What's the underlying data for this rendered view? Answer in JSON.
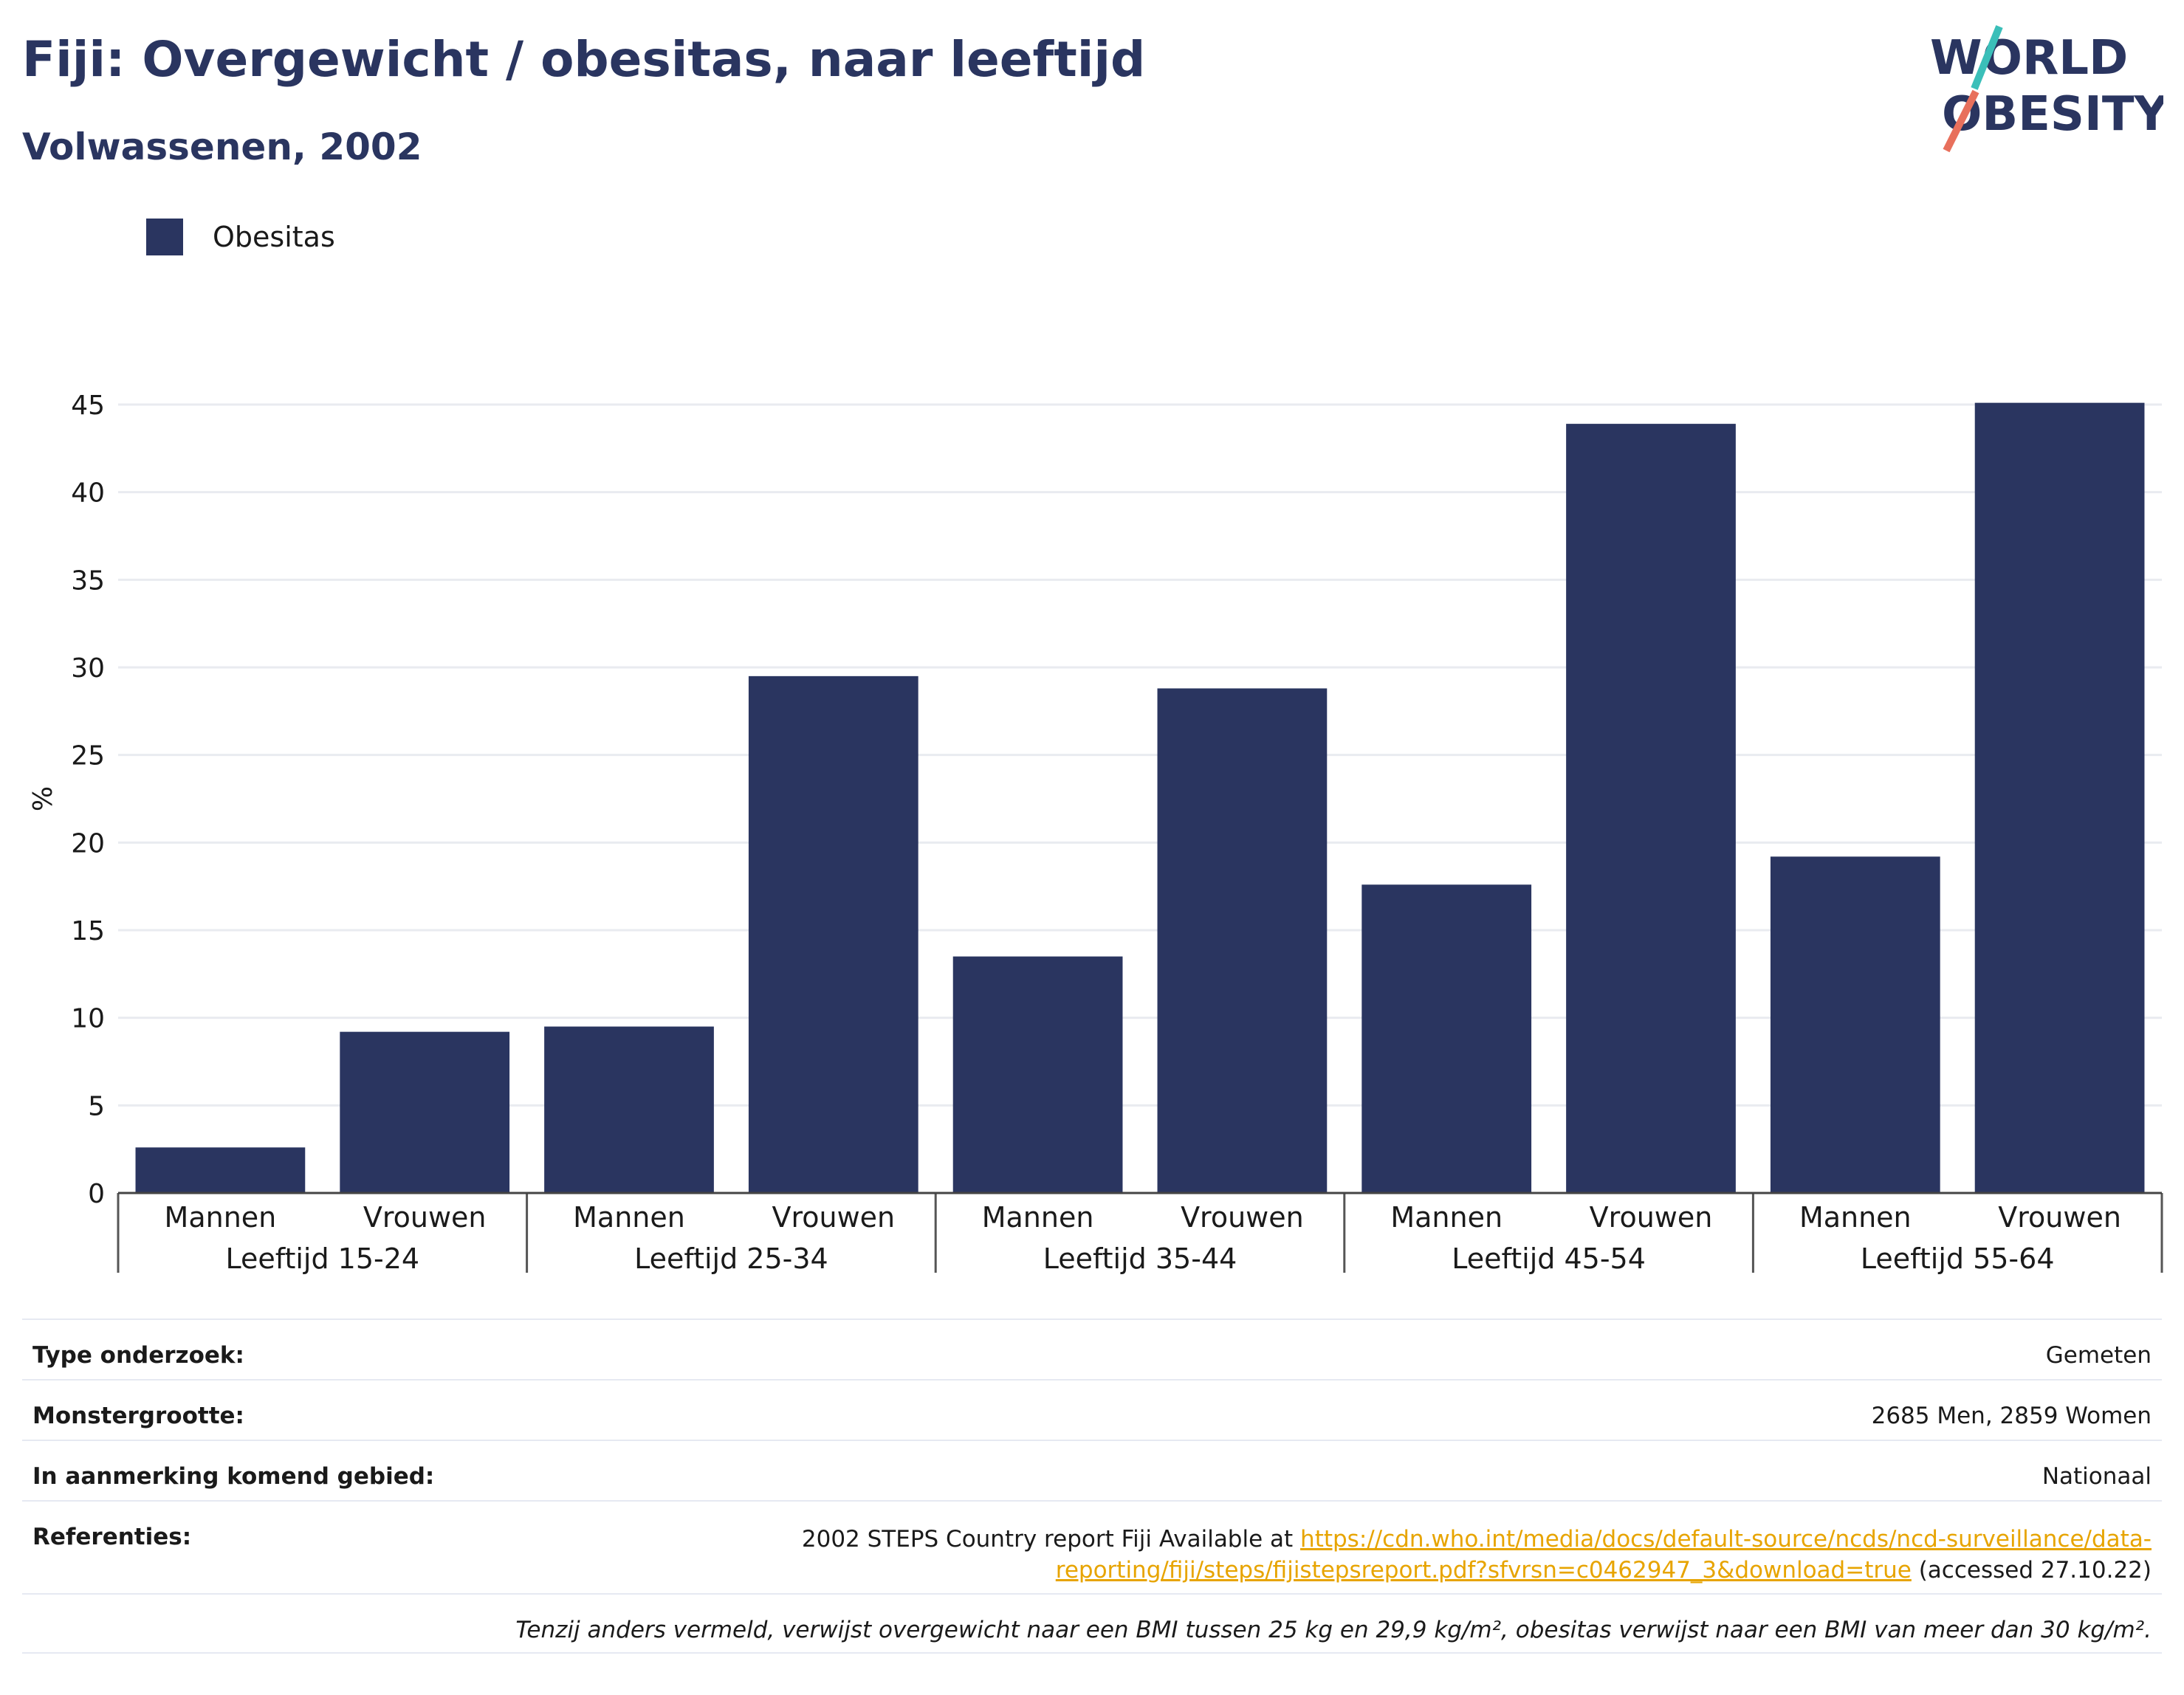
{
  "header": {
    "title": "Fiji: Overgewicht / obesitas, naar leeftijd",
    "subtitle": "Volwassenen, 2002"
  },
  "logo": {
    "line1": "WORLD",
    "line2": "OBESITY",
    "accent_teal": "#3bbfb9",
    "accent_coral": "#e8705c"
  },
  "colors": {
    "bar": "#2a3560",
    "grid": "#e9ebf0",
    "text": "#1a1a1a"
  },
  "chart_data": {
    "type": "bar",
    "ylabel": "%",
    "ylim": [
      0,
      45
    ],
    "yticks": [
      0,
      5,
      10,
      15,
      20,
      25,
      30,
      35,
      40,
      45
    ],
    "grid": true,
    "legend": {
      "placement": "top-left",
      "entries": [
        "Obesitas"
      ]
    },
    "groups": [
      "Leeftijd 15-24",
      "Leeftijd 25-34",
      "Leeftijd 35-44",
      "Leeftijd 45-54",
      "Leeftijd 55-64"
    ],
    "subcategories": [
      "Mannen",
      "Vrouwen"
    ],
    "series": [
      {
        "name": "Obesitas",
        "values": [
          [
            2.6,
            9.2
          ],
          [
            9.5,
            29.5
          ],
          [
            13.5,
            28.8
          ],
          [
            17.6,
            43.9
          ],
          [
            19.2,
            45.1
          ]
        ]
      }
    ]
  },
  "info": {
    "rows": [
      {
        "label": "Type onderzoek:",
        "value": "Gemeten"
      },
      {
        "label": "Monstergrootte:",
        "value": "2685 Men, 2859 Women"
      },
      {
        "label": "In aanmerking komend gebied:",
        "value": "Nationaal"
      }
    ],
    "references": {
      "label": "Referenties:",
      "text_before": "2002 STEPS Country report Fiji Available at",
      "link_line1": "https://cdn.who.int/media/docs/default-source/ncds/ncd-surveillance/data-",
      "link_line2": "reporting/fiji/steps/fijistepsreport.pdf?sfvrsn=c0462947_3&download=true",
      "text_after": "(accessed 27.10.22)"
    },
    "note": "Tenzij anders vermeld, verwijst overgewicht naar een BMI tussen 25 kg en 29,9 kg/m², obesitas verwijst naar een BMI van meer dan 30 kg/m²."
  }
}
